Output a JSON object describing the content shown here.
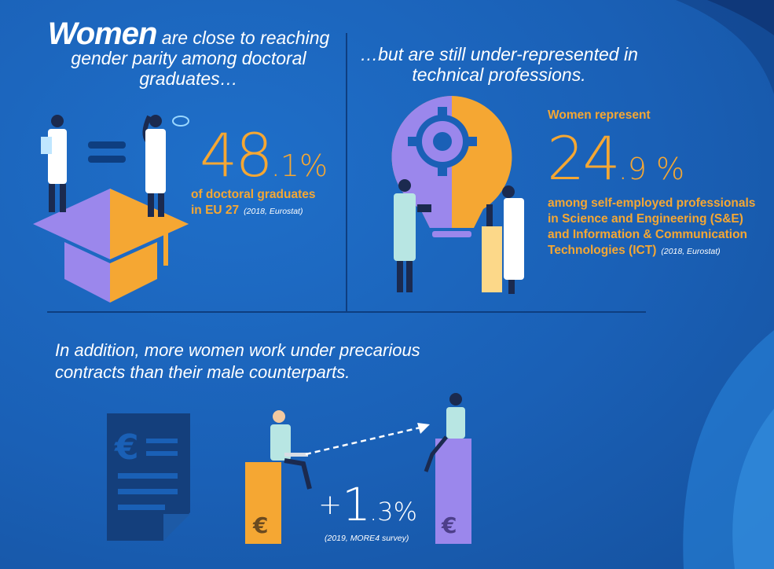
{
  "section1": {
    "title_big": "Women",
    "title_rest": "are close to reaching gender parity among doctoral graduates…",
    "stat_int": "48",
    "stat_dec": ".1%",
    "label_line1": "of doctoral graduates",
    "label_line2": "in EU 27",
    "source": "(2018, Eurostat)"
  },
  "section2": {
    "title": "…but are still under-represented in technical professions.",
    "intro": "Women represent",
    "stat_int": "24",
    "stat_dec": ".9 %",
    "label_line1": "among self-employed professionals",
    "label_line2": "in Science and Engineering (S&E)",
    "label_line3": "and Information & Communication",
    "label_line4": "Technologies (ICT)",
    "source": "(2018, Eurostat)"
  },
  "section3": {
    "title": "In addition, more women work under precarious contracts than their male counterparts.",
    "stat_plus": "+",
    "stat_int": "1",
    "stat_dec": ".3%",
    "source": "(2019, MORE4 survey)"
  },
  "colors": {
    "background": "#1a60b6",
    "orange": "#f5a733",
    "purple": "#9b87ec",
    "light_yellow": "#fcd889",
    "dark_navy": "#0e3e80"
  },
  "icons": [
    "graduation-cap-icon",
    "equals-icon",
    "lightbulb-gear-icon",
    "euro-document-icon",
    "euro-icon",
    "dashed-arrow-icon"
  ]
}
